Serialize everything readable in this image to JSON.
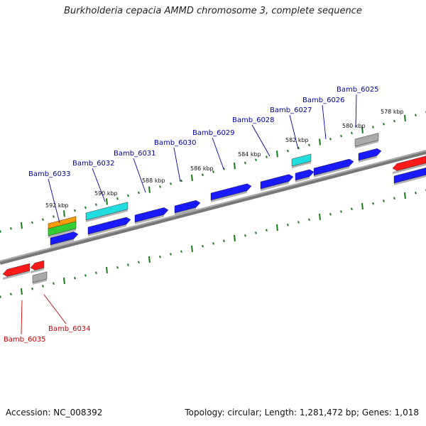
{
  "title": "Burkholderia cepacia AMMD chromosome 3, complete sequence",
  "footer": {
    "accession": "Accession: NC_008392",
    "summary": "Topology: circular; Length: 1,281,472 bp; Genes: 1,018"
  },
  "colors": {
    "forward_gene": "#1a1aff",
    "reverse_gene": "#ff1a1a",
    "highlight_gene": "#22dddd",
    "pseudo_gene": "#aaaaaa",
    "tick": "#1a7a1a",
    "backbone": "#888888"
  },
  "ticks": [
    {
      "label": "578 kbp"
    },
    {
      "label": "580 kbp"
    },
    {
      "label": "582 kbp"
    },
    {
      "label": "584 kbp"
    },
    {
      "label": "586 kbp"
    },
    {
      "label": "588 kbp"
    },
    {
      "label": "590 kbp"
    },
    {
      "label": "592 kbp"
    }
  ],
  "gene_labels": [
    {
      "name": "Bamb_6025",
      "strand": "forward"
    },
    {
      "name": "Bamb_6026",
      "strand": "forward"
    },
    {
      "name": "Bamb_6027",
      "strand": "forward"
    },
    {
      "name": "Bamb_6028",
      "strand": "forward"
    },
    {
      "name": "Bamb_6029",
      "strand": "forward"
    },
    {
      "name": "Bamb_6030",
      "strand": "forward"
    },
    {
      "name": "Bamb_6031",
      "strand": "forward"
    },
    {
      "name": "Bamb_6032",
      "strand": "forward"
    },
    {
      "name": "Bamb_6033",
      "strand": "forward"
    },
    {
      "name": "Bamb_6034",
      "strand": "reverse"
    },
    {
      "name": "Bamb_6035",
      "strand": "reverse"
    }
  ]
}
